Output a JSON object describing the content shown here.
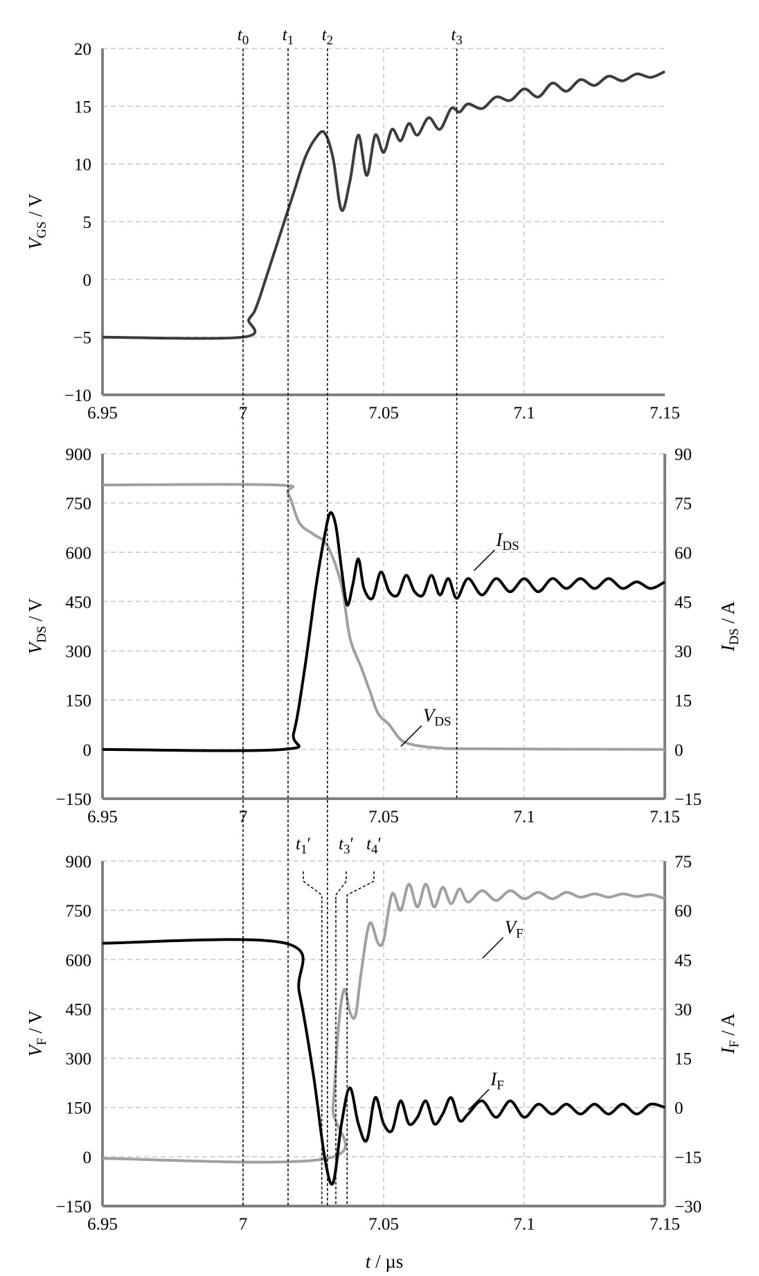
{
  "colors": {
    "grid": "#c8c8c8",
    "axis": "#808080",
    "vgs": "#3c3c3c",
    "black_trace": "#000000",
    "gray_trace": "#a0a0a0",
    "marker_line": "#000000"
  },
  "chart_data": [
    {
      "type": "line",
      "panel": "top",
      "x_range": [
        6.95,
        7.15
      ],
      "x_ticks": [
        "6.95",
        "7",
        "7.05",
        "7.1",
        "7.15"
      ],
      "ylim": [
        -10,
        20
      ],
      "y_ticks": [
        "20",
        "15",
        "10",
        "5",
        "0",
        "−5",
        "−10"
      ],
      "ylabel": {
        "main": "V",
        "sub": "GS",
        "unit": " / V"
      },
      "grid": true,
      "markers": [
        {
          "name": "t",
          "sub": "0",
          "prime": "",
          "x": 7.0
        },
        {
          "name": "t",
          "sub": "1",
          "prime": "",
          "x": 7.016
        },
        {
          "name": "t",
          "sub": "2",
          "prime": "",
          "x": 7.03
        },
        {
          "name": "t",
          "sub": "3",
          "prime": "",
          "x": 7.076
        }
      ],
      "series": [
        {
          "color_key": "vgs",
          "x": [
            6.95,
            7.0,
            7.002,
            7.004,
            7.006,
            7.01,
            7.014,
            7.018,
            7.022,
            7.026,
            7.029,
            7.032,
            7.035,
            7.038,
            7.041,
            7.044,
            7.047,
            7.05,
            7.053,
            7.056,
            7.059,
            7.062,
            7.066,
            7.07,
            7.074,
            7.077,
            7.08,
            7.085,
            7.09,
            7.095,
            7.1,
            7.105,
            7.11,
            7.115,
            7.12,
            7.125,
            7.13,
            7.135,
            7.14,
            7.145,
            7.15
          ],
          "y": [
            -5,
            -5,
            -3.5,
            -2.8,
            -1.5,
            1.5,
            4.5,
            7.5,
            10.5,
            12.3,
            12.7,
            10.5,
            6.0,
            8.5,
            12.5,
            9.0,
            12.5,
            11.0,
            13.0,
            12.0,
            13.5,
            12.5,
            14.0,
            13.0,
            14.8,
            14.5,
            15.2,
            14.8,
            15.8,
            15.5,
            16.5,
            15.8,
            17.0,
            16.3,
            17.3,
            16.8,
            17.6,
            17.2,
            17.8,
            17.5,
            18.0
          ]
        }
      ]
    },
    {
      "type": "line",
      "panel": "middle",
      "x_range": [
        6.95,
        7.15
      ],
      "x_ticks": [
        "6.95",
        "7",
        "7.05",
        "7.1",
        "7.15"
      ],
      "ylim": [
        -150,
        900
      ],
      "y_ticks": [
        "900",
        "750",
        "600",
        "450",
        "300",
        "150",
        "0",
        "−150"
      ],
      "ylabel": {
        "main": "V",
        "sub": "DS",
        "unit": " / V"
      },
      "ylim_right": [
        -15,
        90
      ],
      "y2_ticks": [
        "90",
        "75",
        "60",
        "45",
        "30",
        "15",
        "0",
        "−15"
      ],
      "ylabel_right": {
        "main": "I",
        "sub": "DS",
        "unit": " / A"
      },
      "grid": true,
      "annotations": [
        {
          "main": "I",
          "sub": "DS",
          "x": 7.09,
          "y": 62,
          "axis": "right"
        },
        {
          "main": "V",
          "sub": "DS",
          "x": 7.064,
          "y": 85,
          "axis": "left"
        }
      ],
      "series": [
        {
          "name": "V_DS",
          "axis": "left",
          "color_key": "gray_trace",
          "x": [
            6.95,
            7.012,
            7.016,
            7.02,
            7.025,
            7.03,
            7.035,
            7.038,
            7.042,
            7.045,
            7.048,
            7.052,
            7.056,
            7.06,
            7.065,
            7.07,
            7.08,
            7.15
          ],
          "y": [
            805,
            805,
            780,
            690,
            655,
            620,
            500,
            340,
            250,
            180,
            110,
            75,
            30,
            15,
            8,
            5,
            2,
            0
          ]
        },
        {
          "name": "I_DS",
          "axis": "right",
          "color_key": "black_trace",
          "x": [
            6.95,
            7.014,
            7.018,
            7.022,
            7.026,
            7.029,
            7.031,
            7.033,
            7.035,
            7.037,
            7.039,
            7.041,
            7.043,
            7.046,
            7.049,
            7.052,
            7.055,
            7.058,
            7.061,
            7.064,
            7.067,
            7.07,
            7.073,
            7.076,
            7.08,
            7.085,
            7.09,
            7.095,
            7.1,
            7.105,
            7.11,
            7.115,
            7.12,
            7.125,
            7.13,
            7.135,
            7.14,
            7.145,
            7.15
          ],
          "y": [
            0,
            0,
            5,
            25,
            50,
            65,
            72,
            68,
            55,
            44,
            50,
            58,
            49,
            46,
            54,
            48,
            47,
            53,
            48,
            47,
            53,
            47,
            52,
            46,
            52,
            47,
            52,
            48,
            52,
            48,
            52,
            49,
            52,
            49,
            52,
            49,
            51,
            49,
            51
          ]
        }
      ]
    },
    {
      "type": "line",
      "panel": "bottom",
      "x_range": [
        6.95,
        7.15
      ],
      "x_ticks": [
        "6.95",
        "7",
        "7.05",
        "7.1",
        "7.15"
      ],
      "xlabel": {
        "main": "t",
        "unit": " / µs"
      },
      "ylim": [
        -150,
        900
      ],
      "y_ticks": [
        "900",
        "750",
        "600",
        "450",
        "300",
        "150",
        "0",
        "−150"
      ],
      "ylabel": {
        "main": "V",
        "sub": "F",
        "unit": " / V"
      },
      "ylim_right": [
        -30,
        75
      ],
      "y2_ticks": [
        "75",
        "60",
        "45",
        "30",
        "15",
        "0",
        "−15",
        "−30"
      ],
      "ylabel_right": {
        "main": "I",
        "sub": "F",
        "unit": " / A"
      },
      "grid": true,
      "markers": [
        {
          "name": "t",
          "sub": "1",
          "prime": "′",
          "x": 7.028
        },
        {
          "name": "t",
          "sub": "3",
          "prime": "′",
          "x": 7.033
        },
        {
          "name": "t",
          "sub": "4",
          "prime": "′",
          "x": 7.037
        }
      ],
      "annotations": [
        {
          "main": "V",
          "sub": "F",
          "x": 7.093,
          "y": 680,
          "axis": "left"
        },
        {
          "main": "I",
          "sub": "F",
          "x": 7.088,
          "y": 218,
          "axis": "left"
        }
      ],
      "series": [
        {
          "name": "V_F",
          "axis": "left",
          "color_key": "gray_trace",
          "x": [
            6.95,
            7.03,
            7.032,
            7.034,
            7.036,
            7.038,
            7.04,
            7.042,
            7.045,
            7.048,
            7.05,
            7.053,
            7.056,
            7.059,
            7.062,
            7.065,
            7.068,
            7.071,
            7.074,
            7.077,
            7.08,
            7.085,
            7.09,
            7.095,
            7.1,
            7.105,
            7.11,
            7.115,
            7.12,
            7.125,
            7.13,
            7.135,
            7.14,
            7.145,
            7.15
          ],
          "y": [
            -5,
            -5,
            150,
            400,
            510,
            440,
            430,
            560,
            710,
            650,
            660,
            800,
            750,
            830,
            760,
            830,
            760,
            820,
            770,
            815,
            775,
            810,
            780,
            810,
            785,
            805,
            785,
            805,
            790,
            800,
            790,
            800,
            792,
            798,
            785
          ]
        },
        {
          "name": "I_F",
          "axis": "right",
          "color_key": "black_trace",
          "x": [
            6.95,
            7.015,
            7.02,
            7.025,
            7.029,
            7.032,
            7.035,
            7.038,
            7.041,
            7.044,
            7.047,
            7.05,
            7.053,
            7.056,
            7.059,
            7.062,
            7.065,
            7.068,
            7.071,
            7.074,
            7.077,
            7.08,
            7.085,
            7.09,
            7.095,
            7.1,
            7.105,
            7.11,
            7.115,
            7.12,
            7.125,
            7.13,
            7.135,
            7.14,
            7.145,
            7.15
          ],
          "y": [
            50,
            50,
            35,
            10,
            -15,
            -23,
            -5,
            6,
            -5,
            -10,
            3,
            -5,
            -7,
            2,
            -5,
            -3,
            2,
            -5,
            -2,
            3,
            -4,
            -2,
            2,
            -3,
            2,
            -3,
            1,
            -2,
            1,
            -2,
            1,
            -2,
            1,
            -2,
            1,
            0
          ]
        }
      ]
    }
  ]
}
